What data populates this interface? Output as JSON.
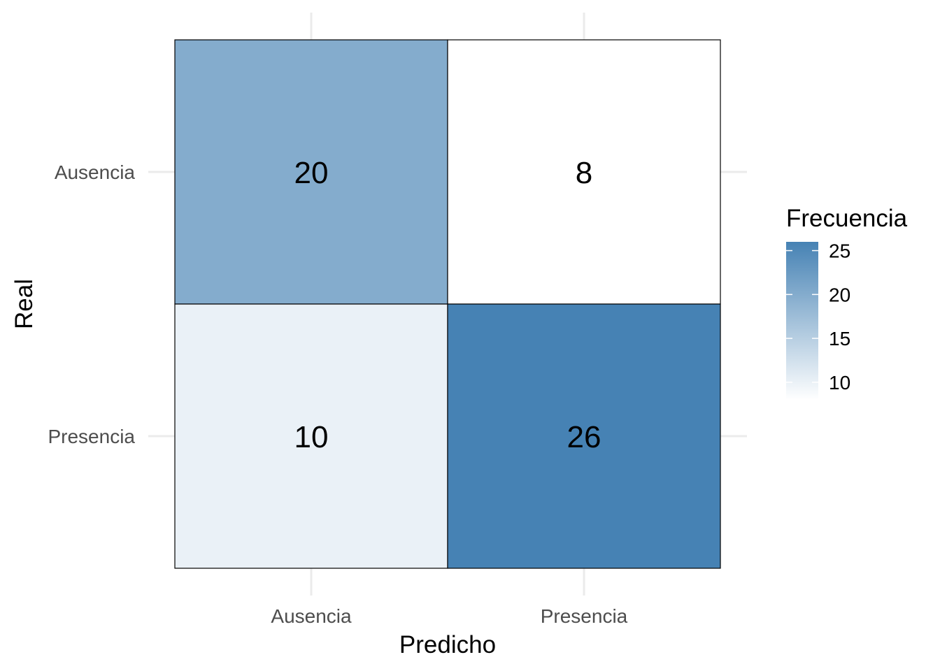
{
  "chart_data": {
    "type": "heatmap",
    "x_categories": [
      "Ausencia",
      "Presencia"
    ],
    "y_categories": [
      "Ausencia",
      "Presencia"
    ],
    "values": [
      [
        20,
        8
      ],
      [
        10,
        26
      ]
    ],
    "xlabel": "Predicho",
    "ylabel": "Real",
    "legend": {
      "title": "Frecuencia",
      "ticks": [
        10,
        15,
        20,
        25
      ],
      "ticks_text": [
        "10",
        "15",
        "20",
        "25"
      ],
      "range": [
        8,
        26
      ],
      "placement": "right"
    },
    "colors": {
      "low": "#ffffff",
      "high": "#4682b4"
    },
    "grid": true
  }
}
